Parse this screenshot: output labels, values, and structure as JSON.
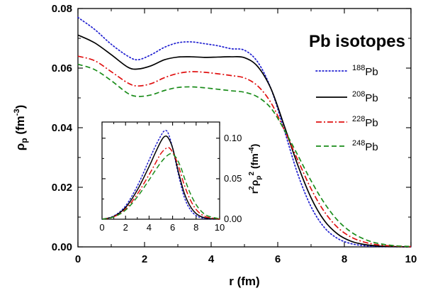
{
  "chart_data": [
    {
      "type": "line",
      "title": "Pb isotopes",
      "xlabel": "r (fm)",
      "ylabel_base": "ρ",
      "ylabel_sub": "p",
      "ylabel_unit_pre": " (fm",
      "ylabel_unit_sup": "-3",
      "ylabel_unit_post": ")",
      "xlim": [
        0,
        10
      ],
      "ylim": [
        0,
        0.08
      ],
      "xticks": [
        "0",
        "2",
        "4",
        "6",
        "8",
        "10"
      ],
      "yticks": [
        "0.00",
        "0.02",
        "0.04",
        "0.06",
        "0.08"
      ],
      "legend_position": "right",
      "series": [
        {
          "name_sup": "188",
          "name_base": "Pb",
          "color": "#1f1fd0",
          "dash": "dotted",
          "x": [
            0,
            0.5,
            1,
            1.5,
            1.8,
            2.2,
            2.6,
            3,
            3.4,
            3.8,
            4.2,
            4.6,
            5,
            5.4,
            5.8,
            6.2,
            6.6,
            7,
            7.4,
            7.8,
            8.2,
            8.6,
            9,
            9.5,
            10
          ],
          "y": [
            0.077,
            0.073,
            0.068,
            0.064,
            0.0628,
            0.0645,
            0.067,
            0.0685,
            0.0688,
            0.0682,
            0.0675,
            0.0665,
            0.066,
            0.062,
            0.053,
            0.039,
            0.0245,
            0.0135,
            0.0065,
            0.0028,
            0.0011,
            0.0004,
            0.00015,
            4e-05,
            1e-05
          ]
        },
        {
          "name_sup": "208",
          "name_base": "Pb",
          "color": "#000000",
          "dash": "solid",
          "x": [
            0,
            0.5,
            1,
            1.5,
            1.8,
            2.2,
            2.6,
            3,
            3.4,
            3.8,
            4.2,
            4.6,
            5,
            5.4,
            5.8,
            6.2,
            6.6,
            7,
            7.4,
            7.8,
            8.2,
            8.6,
            9,
            9.5,
            10
          ],
          "y": [
            0.0711,
            0.0685,
            0.0645,
            0.0603,
            0.0597,
            0.0608,
            0.0628,
            0.0637,
            0.0638,
            0.0636,
            0.0637,
            0.0638,
            0.0635,
            0.0605,
            0.053,
            0.0405,
            0.0275,
            0.0165,
            0.0088,
            0.0043,
            0.0019,
            0.0008,
            0.0003,
            0.0001,
            2e-05
          ]
        },
        {
          "name_sup": "228",
          "name_base": "Pb",
          "color": "#e01010",
          "dash": "dashdot",
          "x": [
            0,
            0.5,
            1,
            1.5,
            1.8,
            2.2,
            2.6,
            3,
            3.4,
            3.8,
            4.2,
            4.6,
            5,
            5.4,
            5.8,
            6.2,
            6.6,
            7,
            7.4,
            7.8,
            8.2,
            8.6,
            9,
            9.5,
            10
          ],
          "y": [
            0.064,
            0.0625,
            0.0588,
            0.055,
            0.054,
            0.0548,
            0.0568,
            0.0582,
            0.0588,
            0.0586,
            0.0581,
            0.0575,
            0.0567,
            0.054,
            0.0483,
            0.0392,
            0.0292,
            0.0195,
            0.0118,
            0.0065,
            0.0033,
            0.0016,
            0.0007,
            0.00025,
            8e-05
          ]
        },
        {
          "name_sup": "248",
          "name_base": "Pb",
          "color": "#1a8c1a",
          "dash": "dashed",
          "x": [
            0,
            0.5,
            1,
            1.5,
            1.8,
            2.2,
            2.6,
            3,
            3.4,
            3.8,
            4.2,
            4.6,
            5,
            5.4,
            5.8,
            6.2,
            6.6,
            7,
            7.4,
            7.8,
            8.2,
            8.6,
            9,
            9.5,
            10
          ],
          "y": [
            0.0613,
            0.0595,
            0.0558,
            0.0515,
            0.0505,
            0.051,
            0.0525,
            0.0535,
            0.0537,
            0.0534,
            0.0529,
            0.0524,
            0.0519,
            0.0503,
            0.0465,
            0.0392,
            0.0308,
            0.0222,
            0.0147,
            0.0089,
            0.005,
            0.0026,
            0.0012,
            0.0004,
            0.00012
          ]
        }
      ]
    },
    {
      "type": "line",
      "xlabel": "",
      "ylabel_pre": "r",
      "ylabel_pre_sup": "2",
      "ylabel_rho": "ρ",
      "ylabel_rho_sub": "p",
      "ylabel_rho_sup": "2",
      "ylabel_unit_pre": " (fm",
      "ylabel_unit_sup": "-4",
      "ylabel_unit_post": ")",
      "xlim": [
        0,
        10
      ],
      "ylim": [
        0,
        0.12
      ],
      "xticks": [
        "0",
        "2",
        "4",
        "6",
        "8",
        "10"
      ],
      "yticks": [
        "0.00",
        "0.05",
        "0.10"
      ],
      "series": [
        {
          "color": "#1f1fd0",
          "dash": "dotted",
          "x": [
            0,
            1,
            2,
            3,
            4,
            4.5,
            5,
            5.3,
            5.6,
            6,
            6.5,
            7,
            7.5,
            8,
            8.5,
            9,
            10
          ],
          "y": [
            0,
            0.004,
            0.0165,
            0.041,
            0.073,
            0.089,
            0.103,
            0.109,
            0.107,
            0.088,
            0.055,
            0.027,
            0.012,
            0.0045,
            0.0016,
            0.0005,
            0
          ]
        },
        {
          "color": "#000000",
          "dash": "solid",
          "x": [
            0,
            1,
            2,
            3,
            4,
            4.5,
            5,
            5.3,
            5.6,
            6,
            6.5,
            7,
            7.5,
            8,
            8.5,
            9,
            10
          ],
          "y": [
            0,
            0.0035,
            0.0145,
            0.036,
            0.065,
            0.081,
            0.096,
            0.102,
            0.101,
            0.088,
            0.058,
            0.032,
            0.016,
            0.007,
            0.0028,
            0.001,
            0
          ]
        },
        {
          "color": "#e01010",
          "dash": "dashdot",
          "x": [
            0,
            1,
            2,
            3,
            4,
            4.5,
            5,
            5.5,
            5.8,
            6.2,
            6.6,
            7,
            7.5,
            8,
            8.5,
            9,
            10
          ],
          "y": [
            0,
            0.003,
            0.0125,
            0.031,
            0.055,
            0.068,
            0.081,
            0.088,
            0.087,
            0.077,
            0.061,
            0.042,
            0.024,
            0.012,
            0.0055,
            0.0023,
            0.0002
          ]
        },
        {
          "color": "#1a8c1a",
          "dash": "dashed",
          "x": [
            0,
            1,
            2,
            3,
            4,
            4.5,
            5,
            5.5,
            5.9,
            6.3,
            6.7,
            7.1,
            7.5,
            8,
            8.5,
            9,
            10
          ],
          "y": [
            0,
            0.0028,
            0.0112,
            0.0275,
            0.0485,
            0.0595,
            0.07,
            0.078,
            0.081,
            0.076,
            0.064,
            0.047,
            0.032,
            0.018,
            0.009,
            0.004,
            0.0005
          ]
        }
      ]
    }
  ]
}
